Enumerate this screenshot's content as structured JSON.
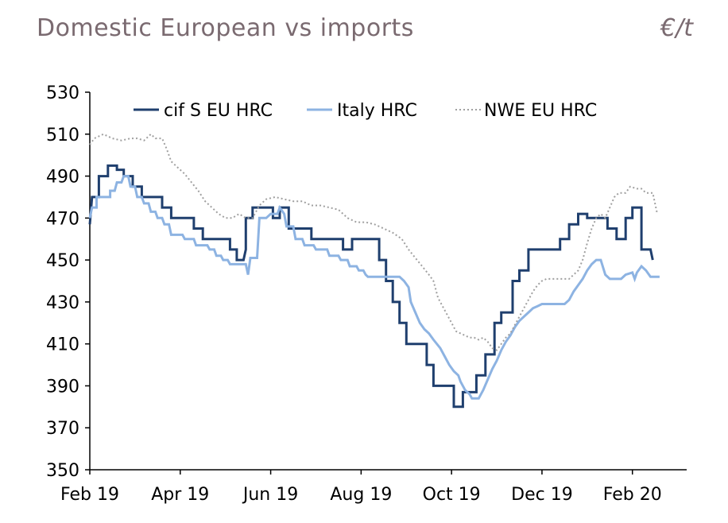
{
  "header": {
    "title": "Domestic European vs imports",
    "unit": "€/t"
  },
  "chart_data": {
    "type": "line",
    "title": "Domestic European vs imports",
    "ylabel": "€/t",
    "xlabel": "",
    "ylim": [
      350,
      530
    ],
    "yticks": [
      350,
      370,
      390,
      410,
      430,
      450,
      470,
      490,
      510,
      530
    ],
    "xlim": [
      0,
      13.2
    ],
    "xticks": [
      {
        "label": "Feb 19",
        "x": 0
      },
      {
        "label": "Apr 19",
        "x": 2
      },
      {
        "label": "Jun 19",
        "x": 4
      },
      {
        "label": "Aug 19",
        "x": 6
      },
      {
        "label": "Oct 19",
        "x": 8
      },
      {
        "label": "Dec 19",
        "x": 10
      },
      {
        "label": "Feb 20",
        "x": 12
      }
    ],
    "legend": "top",
    "series": [
      {
        "name": "cif S EU HRC",
        "color": "#1f3f6e",
        "style": "solid",
        "points": [
          [
            0,
            467
          ],
          [
            0.05,
            480
          ],
          [
            0.2,
            480
          ],
          [
            0.2,
            490
          ],
          [
            0.4,
            490
          ],
          [
            0.4,
            495
          ],
          [
            0.6,
            495
          ],
          [
            0.6,
            493
          ],
          [
            0.75,
            493
          ],
          [
            0.75,
            490
          ],
          [
            0.95,
            490
          ],
          [
            0.95,
            485
          ],
          [
            1.15,
            485
          ],
          [
            1.15,
            480
          ],
          [
            1.6,
            480
          ],
          [
            1.6,
            475
          ],
          [
            1.8,
            475
          ],
          [
            1.8,
            470
          ],
          [
            2.2,
            470
          ],
          [
            2.2,
            470
          ],
          [
            2.3,
            470
          ],
          [
            2.3,
            465
          ],
          [
            2.5,
            465
          ],
          [
            2.5,
            460
          ],
          [
            2.9,
            460
          ],
          [
            2.9,
            460
          ],
          [
            3.1,
            460
          ],
          [
            3.1,
            455
          ],
          [
            3.25,
            455
          ],
          [
            3.25,
            450
          ],
          [
            3.4,
            450
          ],
          [
            3.45,
            455
          ],
          [
            3.45,
            470
          ],
          [
            3.6,
            470
          ],
          [
            3.6,
            475
          ],
          [
            4.05,
            475
          ],
          [
            4.05,
            470
          ],
          [
            4.2,
            470
          ],
          [
            4.2,
            475
          ],
          [
            4.4,
            475
          ],
          [
            4.4,
            465
          ],
          [
            4.9,
            465
          ],
          [
            4.9,
            460
          ],
          [
            5.35,
            460
          ],
          [
            5.35,
            460
          ],
          [
            5.6,
            460
          ],
          [
            5.6,
            455
          ],
          [
            5.8,
            455
          ],
          [
            5.8,
            460
          ],
          [
            6.4,
            460
          ],
          [
            6.4,
            450
          ],
          [
            6.55,
            450
          ],
          [
            6.55,
            440
          ],
          [
            6.7,
            440
          ],
          [
            6.7,
            430
          ],
          [
            6.85,
            430
          ],
          [
            6.85,
            420
          ],
          [
            7.0,
            420
          ],
          [
            7.0,
            410
          ],
          [
            7.45,
            410
          ],
          [
            7.45,
            400
          ],
          [
            7.6,
            400
          ],
          [
            7.6,
            390
          ],
          [
            8.05,
            390
          ],
          [
            8.05,
            380
          ],
          [
            8.25,
            380
          ],
          [
            8.25,
            387
          ],
          [
            8.55,
            387
          ],
          [
            8.55,
            395
          ],
          [
            8.75,
            395
          ],
          [
            8.75,
            405
          ],
          [
            8.95,
            405
          ],
          [
            8.95,
            420
          ],
          [
            9.1,
            420
          ],
          [
            9.1,
            425
          ],
          [
            9.35,
            425
          ],
          [
            9.35,
            440
          ],
          [
            9.5,
            440
          ],
          [
            9.5,
            445
          ],
          [
            9.7,
            445
          ],
          [
            9.7,
            455
          ],
          [
            10.4,
            455
          ],
          [
            10.4,
            460
          ],
          [
            10.6,
            460
          ],
          [
            10.6,
            467
          ],
          [
            10.8,
            467
          ],
          [
            10.8,
            472
          ],
          [
            11.0,
            472
          ],
          [
            11.0,
            470
          ],
          [
            11.45,
            470
          ],
          [
            11.45,
            465
          ],
          [
            11.65,
            465
          ],
          [
            11.65,
            460
          ],
          [
            11.85,
            460
          ],
          [
            11.85,
            470
          ],
          [
            12.0,
            470
          ],
          [
            12.0,
            475
          ],
          [
            12.2,
            475
          ],
          [
            12.2,
            455
          ],
          [
            12.4,
            455
          ],
          [
            12.45,
            450
          ]
        ]
      },
      {
        "name": "Italy HRC",
        "color": "#8db3e2",
        "style": "solid",
        "points": [
          [
            0,
            470
          ],
          [
            0.05,
            475
          ],
          [
            0.15,
            475
          ],
          [
            0.15,
            480
          ],
          [
            0.45,
            480
          ],
          [
            0.45,
            483
          ],
          [
            0.55,
            483
          ],
          [
            0.6,
            487
          ],
          [
            0.7,
            487
          ],
          [
            0.75,
            490
          ],
          [
            0.85,
            490
          ],
          [
            0.9,
            485
          ],
          [
            1.0,
            485
          ],
          [
            1.05,
            480
          ],
          [
            1.15,
            480
          ],
          [
            1.2,
            477
          ],
          [
            1.3,
            477
          ],
          [
            1.35,
            473
          ],
          [
            1.45,
            473
          ],
          [
            1.5,
            470
          ],
          [
            1.6,
            470
          ],
          [
            1.65,
            467
          ],
          [
            1.75,
            467
          ],
          [
            1.8,
            462
          ],
          [
            2.05,
            462
          ],
          [
            2.1,
            460
          ],
          [
            2.3,
            460
          ],
          [
            2.35,
            457
          ],
          [
            2.6,
            457
          ],
          [
            2.65,
            455
          ],
          [
            2.75,
            455
          ],
          [
            2.8,
            452
          ],
          [
            2.9,
            452
          ],
          [
            2.95,
            450
          ],
          [
            3.05,
            450
          ],
          [
            3.1,
            448
          ],
          [
            3.45,
            448
          ],
          [
            3.5,
            443
          ],
          [
            3.55,
            451
          ],
          [
            3.7,
            451
          ],
          [
            3.75,
            470
          ],
          [
            3.9,
            470
          ],
          [
            4.0,
            472
          ],
          [
            4.15,
            472
          ],
          [
            4.2,
            475
          ],
          [
            4.3,
            472
          ],
          [
            4.35,
            466
          ],
          [
            4.5,
            466
          ],
          [
            4.55,
            460
          ],
          [
            4.7,
            460
          ],
          [
            4.75,
            457
          ],
          [
            4.95,
            457
          ],
          [
            5.0,
            455
          ],
          [
            5.25,
            455
          ],
          [
            5.3,
            452
          ],
          [
            5.5,
            452
          ],
          [
            5.55,
            450
          ],
          [
            5.7,
            450
          ],
          [
            5.75,
            447
          ],
          [
            5.9,
            447
          ],
          [
            5.95,
            445
          ],
          [
            6.05,
            445
          ],
          [
            6.1,
            443
          ],
          [
            6.15,
            442
          ],
          [
            6.85,
            442
          ],
          [
            6.95,
            440
          ],
          [
            7.05,
            437
          ],
          [
            7.1,
            430
          ],
          [
            7.2,
            425
          ],
          [
            7.3,
            420
          ],
          [
            7.4,
            417
          ],
          [
            7.5,
            415
          ],
          [
            7.6,
            412
          ],
          [
            7.75,
            408
          ],
          [
            7.85,
            404
          ],
          [
            7.95,
            400
          ],
          [
            8.05,
            397
          ],
          [
            8.15,
            395
          ],
          [
            8.2,
            392
          ],
          [
            8.3,
            388
          ],
          [
            8.4,
            386
          ],
          [
            8.45,
            384
          ],
          [
            8.6,
            384
          ],
          [
            8.7,
            388
          ],
          [
            8.8,
            393
          ],
          [
            8.9,
            398
          ],
          [
            9.0,
            402
          ],
          [
            9.1,
            407
          ],
          [
            9.2,
            411
          ],
          [
            9.3,
            414
          ],
          [
            9.4,
            418
          ],
          [
            9.5,
            421
          ],
          [
            9.6,
            423
          ],
          [
            9.7,
            425
          ],
          [
            9.8,
            427
          ],
          [
            9.9,
            428
          ],
          [
            10.0,
            429
          ],
          [
            10.5,
            429
          ],
          [
            10.6,
            431
          ],
          [
            10.7,
            435
          ],
          [
            10.8,
            438
          ],
          [
            10.9,
            441
          ],
          [
            11.0,
            445
          ],
          [
            11.1,
            448
          ],
          [
            11.2,
            450
          ],
          [
            11.3,
            450
          ],
          [
            11.4,
            443
          ],
          [
            11.5,
            441
          ],
          [
            11.75,
            441
          ],
          [
            11.85,
            443
          ],
          [
            12.0,
            444
          ],
          [
            12.05,
            441
          ],
          [
            12.1,
            444
          ],
          [
            12.2,
            447
          ],
          [
            12.3,
            445
          ],
          [
            12.4,
            442
          ],
          [
            12.6,
            442
          ]
        ]
      },
      {
        "name": "NWE EU HRC",
        "color": "#a0a0a0",
        "style": "dotted",
        "points": [
          [
            0,
            505
          ],
          [
            0.1,
            508
          ],
          [
            0.3,
            510
          ],
          [
            0.5,
            508
          ],
          [
            0.7,
            507
          ],
          [
            0.9,
            508
          ],
          [
            1.05,
            508
          ],
          [
            1.2,
            507
          ],
          [
            1.35,
            510
          ],
          [
            1.45,
            508
          ],
          [
            1.6,
            508
          ],
          [
            1.7,
            503
          ],
          [
            1.8,
            497
          ],
          [
            1.95,
            494
          ],
          [
            2.1,
            491
          ],
          [
            2.25,
            487
          ],
          [
            2.4,
            483
          ],
          [
            2.55,
            478
          ],
          [
            2.7,
            475
          ],
          [
            2.85,
            472
          ],
          [
            3.0,
            470
          ],
          [
            3.15,
            470
          ],
          [
            3.3,
            472
          ],
          [
            3.45,
            470
          ],
          [
            3.6,
            470
          ],
          [
            3.75,
            476
          ],
          [
            3.9,
            479
          ],
          [
            4.1,
            480
          ],
          [
            4.3,
            479
          ],
          [
            4.5,
            478
          ],
          [
            4.7,
            478
          ],
          [
            4.9,
            476
          ],
          [
            5.1,
            476
          ],
          [
            5.3,
            475
          ],
          [
            5.5,
            474
          ],
          [
            5.7,
            470
          ],
          [
            5.9,
            468
          ],
          [
            6.1,
            468
          ],
          [
            6.3,
            467
          ],
          [
            6.5,
            465
          ],
          [
            6.7,
            463
          ],
          [
            6.9,
            460
          ],
          [
            7.05,
            455
          ],
          [
            7.2,
            451
          ],
          [
            7.35,
            447
          ],
          [
            7.5,
            443
          ],
          [
            7.6,
            440
          ],
          [
            7.7,
            432
          ],
          [
            7.8,
            428
          ],
          [
            7.9,
            424
          ],
          [
            8.0,
            420
          ],
          [
            8.1,
            416
          ],
          [
            8.2,
            415
          ],
          [
            8.3,
            414
          ],
          [
            8.4,
            413
          ],
          [
            8.5,
            413
          ],
          [
            8.6,
            412
          ],
          [
            8.7,
            413
          ],
          [
            8.8,
            411
          ],
          [
            8.9,
            408
          ],
          [
            9.0,
            407
          ],
          [
            9.1,
            410
          ],
          [
            9.2,
            413
          ],
          [
            9.3,
            415
          ],
          [
            9.4,
            419
          ],
          [
            9.5,
            423
          ],
          [
            9.6,
            427
          ],
          [
            9.7,
            431
          ],
          [
            9.8,
            435
          ],
          [
            9.9,
            438
          ],
          [
            10.0,
            440
          ],
          [
            10.1,
            441
          ],
          [
            10.6,
            441
          ],
          [
            10.7,
            443
          ],
          [
            10.8,
            445
          ],
          [
            10.9,
            450
          ],
          [
            11.0,
            458
          ],
          [
            11.1,
            465
          ],
          [
            11.2,
            470
          ],
          [
            11.3,
            472
          ],
          [
            11.4,
            470
          ],
          [
            11.5,
            475
          ],
          [
            11.6,
            480
          ],
          [
            11.7,
            482
          ],
          [
            11.85,
            482
          ],
          [
            11.95,
            485
          ],
          [
            12.1,
            484
          ],
          [
            12.2,
            484
          ],
          [
            12.3,
            482
          ],
          [
            12.45,
            482
          ],
          [
            12.55,
            472
          ]
        ]
      }
    ]
  }
}
